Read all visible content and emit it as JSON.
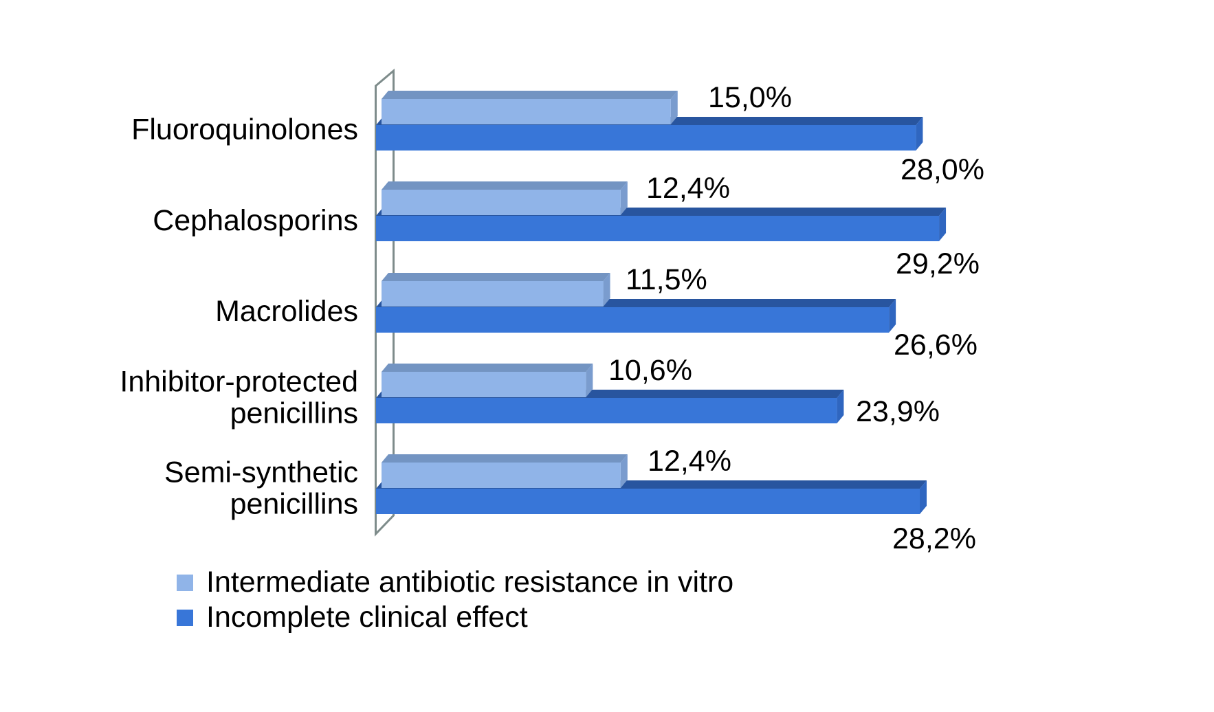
{
  "chart_data": {
    "type": "bar",
    "orientation": "horizontal",
    "style": "3d",
    "title": "",
    "xlabel": "",
    "ylabel": "",
    "axis_max": 30,
    "grid": false,
    "legend_position": "bottom-left",
    "value_format": "comma-decimal-percent",
    "categories": [
      "Fluoroquinolones",
      "Cephalosporins",
      "Macrolides",
      "Inhibitor-protected penicillins",
      "Semi-synthetic penicillins"
    ],
    "category_lines": [
      [
        "Fluoroquinolones"
      ],
      [
        "Cephalosporins"
      ],
      [
        "Macrolides"
      ],
      [
        "Inhibitor-protected",
        "penicillins"
      ],
      [
        "Semi-synthetic",
        "penicillins"
      ]
    ],
    "series": [
      {
        "name": "Intermediate antibiotic resistance in vitro",
        "color": "#90B4E8",
        "values": [
          15.0,
          12.4,
          11.5,
          10.6,
          12.4
        ],
        "value_labels": [
          "15,0%",
          "12,4%",
          "11,5%",
          "10,6%",
          "12,4%"
        ]
      },
      {
        "name": "Incomplete clinical effect",
        "color": "#3876D8",
        "values": [
          28.0,
          29.2,
          26.6,
          23.9,
          28.2
        ],
        "value_labels": [
          "28,0%",
          "29,2%",
          "26,6%",
          "23,9%",
          "28,2%"
        ]
      }
    ]
  },
  "colors": {
    "series1_face": "#90B4E8",
    "series1_top": "#7394C2",
    "series1_side": "#7A9CCE",
    "series2_face": "#3876D8",
    "series2_top": "#28559F",
    "series2_side": "#2F66C0",
    "wall_outline": "#7E8C8B",
    "text": "#000000",
    "background": "#FFFFFF"
  },
  "legend": {
    "items": [
      {
        "label": "Intermediate antibiotic resistance in vitro"
      },
      {
        "label": "Incomplete clinical effect"
      }
    ]
  }
}
